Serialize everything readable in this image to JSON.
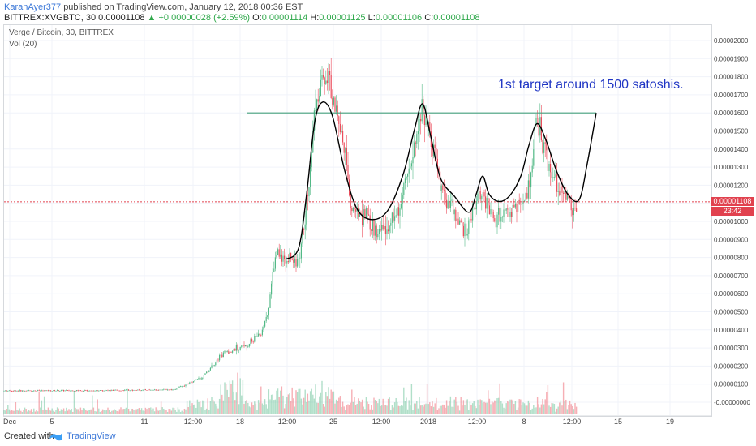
{
  "header": {
    "author": "KaranAyer377",
    "published_text": "published on TradingView.com, January 12, 2018 00:36 EST",
    "symbol": "BITTREX:XVGBTC, 30",
    "last": "0.00001108",
    "change": "▲ +0.00000028 (+2.59%)",
    "ohlc_o_label": "O:",
    "ohlc_o": "0.00001114",
    "ohlc_h_label": "H:",
    "ohlc_h": "0.00001125",
    "ohlc_l_label": "L:",
    "ohlc_l": "0.00001106",
    "ohlc_c_label": "C:",
    "ohlc_c": "0.00001108"
  },
  "legend": {
    "title": "Verge / Bitcoin, 30, BITTREX",
    "vol": "Vol (20)"
  },
  "annotation": "1st target around 1500 satoshis.",
  "price_tag": "0.00001108",
  "timer_tag": "23:42",
  "footer": {
    "created": "Created with",
    "brand": "TradingView"
  },
  "colors": {
    "up": "#53b987",
    "down": "#eb4d5c",
    "last_price": "#e1414e",
    "drawing": "#000000",
    "hline": "#45a07c",
    "annotation": "#1f35c4"
  },
  "chart_data": {
    "type": "candlestick",
    "x_ticks": [
      "Dec",
      "5",
      "11",
      "12:00",
      "18",
      "12:00",
      "25",
      "12:00",
      "2018",
      "12:00",
      "8",
      "12:00",
      "15",
      "19"
    ],
    "y_ticks": [
      "0.00002000",
      "0.00001900",
      "0.00001800",
      "0.00001700",
      "0.00001600",
      "0.00001500",
      "0.00001400",
      "0.00001300",
      "0.00001200",
      "0.00001100",
      "0.00001000",
      "0.00000900",
      "0.00000800",
      "0.00000700",
      "0.00000600",
      "0.00000500",
      "0.00000400",
      "0.00000300",
      "0.00000200",
      "0.00000100",
      "-0.00000000"
    ],
    "ylim": [
      -0.0,
      2e-05
    ],
    "last_price": 1.108e-05,
    "target_level": 1.6e-05,
    "price_path": [
      [
        0,
        6.3e-07
      ],
      [
        140,
        6.5e-07
      ],
      [
        215,
        7e-07
      ],
      [
        250,
        1.4e-06
      ],
      [
        275,
        2.7e-06
      ],
      [
        300,
        3.1e-06
      ],
      [
        322,
        3.8e-06
      ],
      [
        330,
        4.8e-06
      ],
      [
        340,
        8.5e-06
      ],
      [
        352,
        7.8e-06
      ],
      [
        370,
        8e-06
      ],
      [
        380,
        1.2e-05
      ],
      [
        388,
        1.62e-05
      ],
      [
        398,
        1.85e-05
      ],
      [
        410,
        1.72e-05
      ],
      [
        425,
        1.4e-05
      ],
      [
        432,
        1.05e-05
      ],
      [
        445,
        1.05e-05
      ],
      [
        460,
        9.6e-06
      ],
      [
        478,
        9.5e-06
      ],
      [
        495,
        1.13e-05
      ],
      [
        512,
        1.42e-05
      ],
      [
        520,
        1.65e-05
      ],
      [
        532,
        1.45e-05
      ],
      [
        545,
        1.15e-05
      ],
      [
        562,
        1.02e-05
      ],
      [
        575,
        9.3e-06
      ],
      [
        590,
        1.18e-05
      ],
      [
        600,
        1.08e-05
      ],
      [
        612,
        1.01e-05
      ],
      [
        630,
        1.05e-05
      ],
      [
        650,
        1.15e-05
      ],
      [
        662,
        1.56e-05
      ],
      [
        675,
        1.33e-05
      ],
      [
        690,
        1.18e-05
      ],
      [
        705,
        1.08e-05
      ],
      [
        712,
        1.108e-05
      ]
    ],
    "drawing_path": [
      [
        352,
        7.9e-06
      ],
      [
        368,
        8.5e-06
      ],
      [
        378,
        1.15e-05
      ],
      [
        388,
        1.55e-05
      ],
      [
        398,
        1.66e-05
      ],
      [
        410,
        1.58e-05
      ],
      [
        425,
        1.28e-05
      ],
      [
        440,
        1.07e-05
      ],
      [
        458,
        1.01e-05
      ],
      [
        478,
        1.06e-05
      ],
      [
        497,
        1.26e-05
      ],
      [
        511,
        1.51e-05
      ],
      [
        521,
        1.65e-05
      ],
      [
        531,
        1.47e-05
      ],
      [
        543,
        1.24e-05
      ],
      [
        560,
        1.14e-05
      ],
      [
        578,
        1.05e-05
      ],
      [
        587,
        1.15e-05
      ],
      [
        595,
        1.25e-05
      ],
      [
        603,
        1.15e-05
      ],
      [
        615,
        1.11e-05
      ],
      [
        628,
        1.14e-05
      ],
      [
        642,
        1.25e-05
      ],
      [
        652,
        1.42e-05
      ],
      [
        662,
        1.54e-05
      ],
      [
        673,
        1.45e-05
      ],
      [
        686,
        1.28e-05
      ],
      [
        700,
        1.15e-05
      ],
      [
        714,
        1.12e-05
      ],
      [
        724,
        1.32e-05
      ],
      [
        735,
        1.6e-05
      ]
    ],
    "target_line_x": [
      305,
      735
    ]
  }
}
